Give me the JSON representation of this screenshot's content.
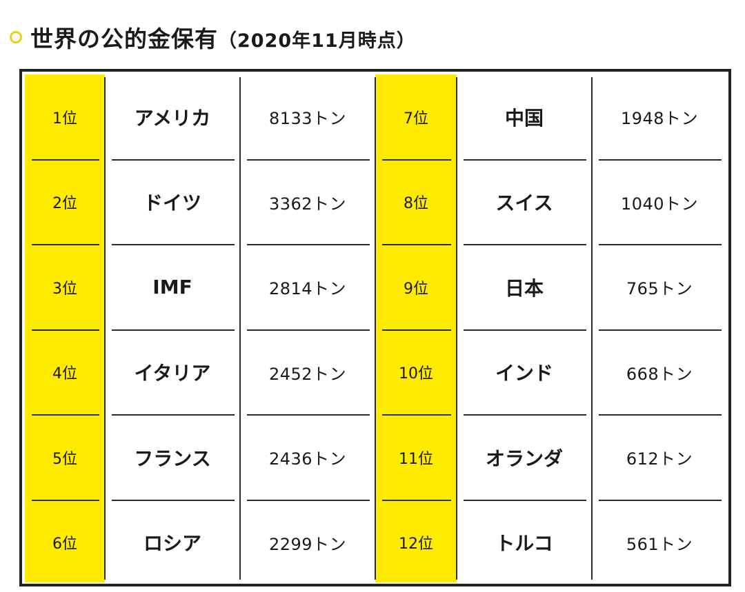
{
  "title": {
    "main": "世界の公的金保有",
    "paren": "（2020年11月時点）"
  },
  "colors": {
    "rank_background": "#ffeb00",
    "bullet": "#e8d21a"
  },
  "rows": [
    {
      "rank": "1位",
      "country": "アメリカ",
      "amount": "8133トン"
    },
    {
      "rank": "2位",
      "country": "ドイツ",
      "amount": "3362トン"
    },
    {
      "rank": "3位",
      "country": "IMF",
      "amount": "2814トン"
    },
    {
      "rank": "4位",
      "country": "イタリア",
      "amount": "2452トン"
    },
    {
      "rank": "5位",
      "country": "フランス",
      "amount": "2436トン"
    },
    {
      "rank": "6位",
      "country": "ロシア",
      "amount": "2299トン"
    },
    {
      "rank": "7位",
      "country": "中国",
      "amount": "1948トン"
    },
    {
      "rank": "8位",
      "country": "スイス",
      "amount": "1040トン"
    },
    {
      "rank": "9位",
      "country": "日本",
      "amount": "765トン"
    },
    {
      "rank": "10位",
      "country": "インド",
      "amount": "668トン"
    },
    {
      "rank": "11位",
      "country": "オランダ",
      "amount": "612トン"
    },
    {
      "rank": "12位",
      "country": "トルコ",
      "amount": "561トン"
    }
  ]
}
